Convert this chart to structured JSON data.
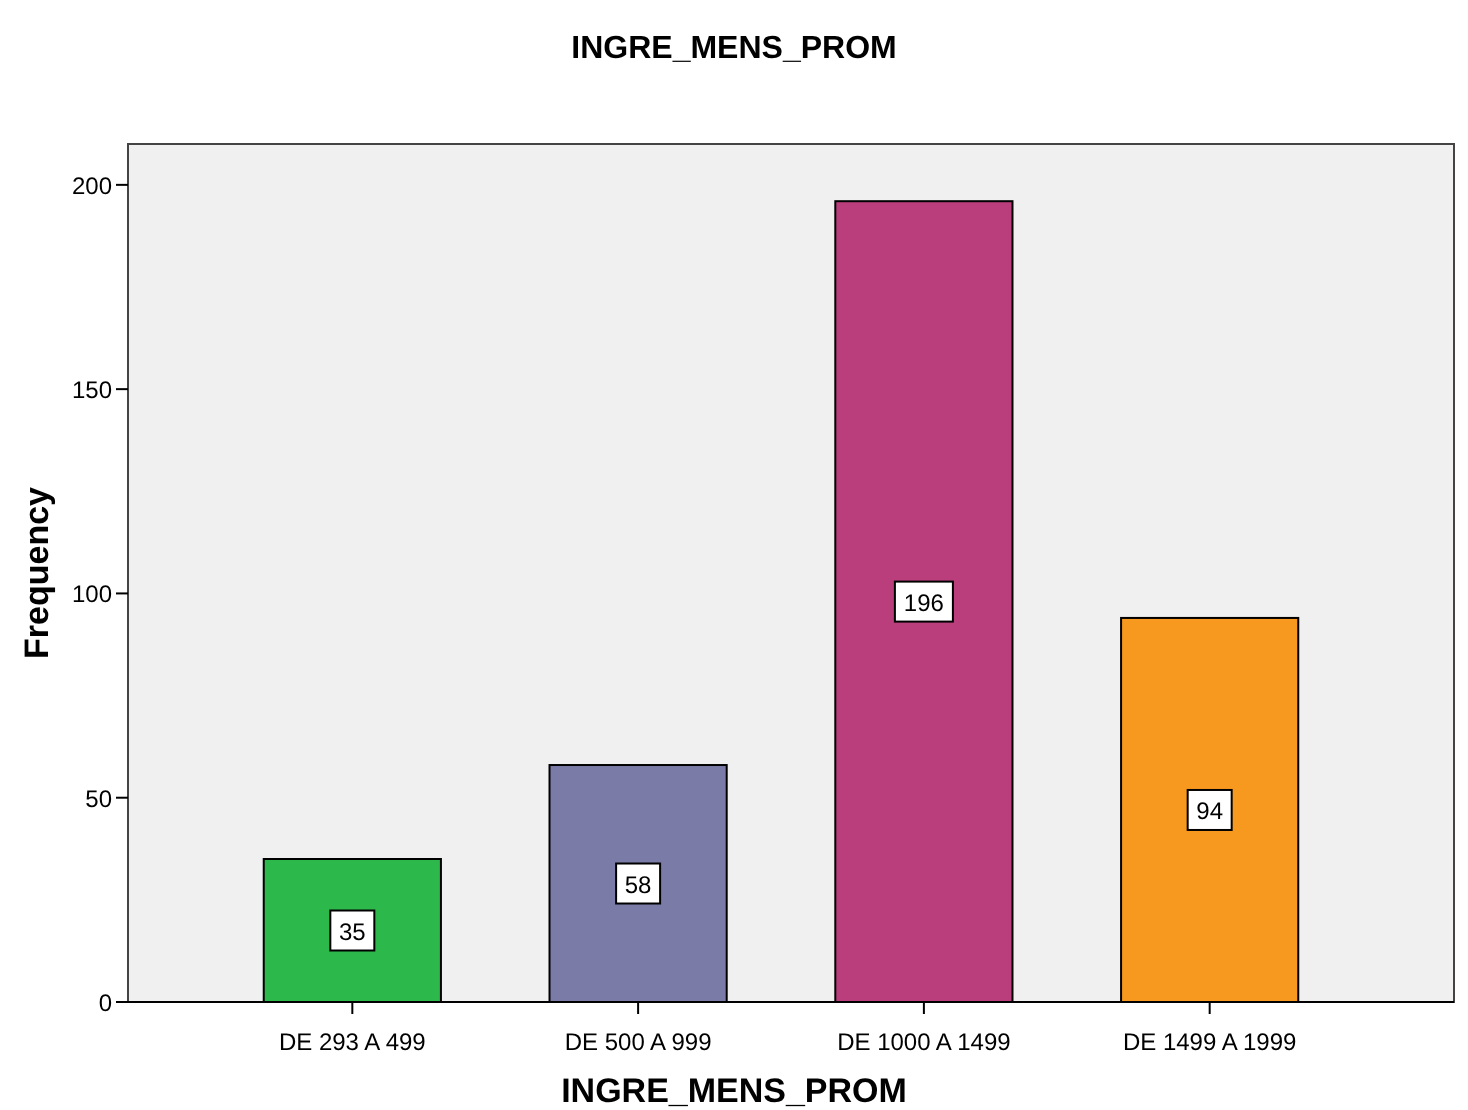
{
  "chart_data": {
    "type": "bar",
    "title": "INGRE_MENS_PROM",
    "xlabel": "INGRE_MENS_PROM",
    "ylabel": "Frequency",
    "categories": [
      "DE 293 A 499",
      "DE 500 A 999",
      "DE 1000 A 1499",
      "DE 1499 A 1999"
    ],
    "values": [
      35,
      58,
      196,
      94
    ],
    "colors": [
      "#2db84b",
      "#7b7ba8",
      "#bb3e7c",
      "#f7981f"
    ],
    "ylim": [
      0,
      210
    ],
    "yticks": [
      0,
      50,
      100,
      150,
      200
    ],
    "data_labels": true
  }
}
